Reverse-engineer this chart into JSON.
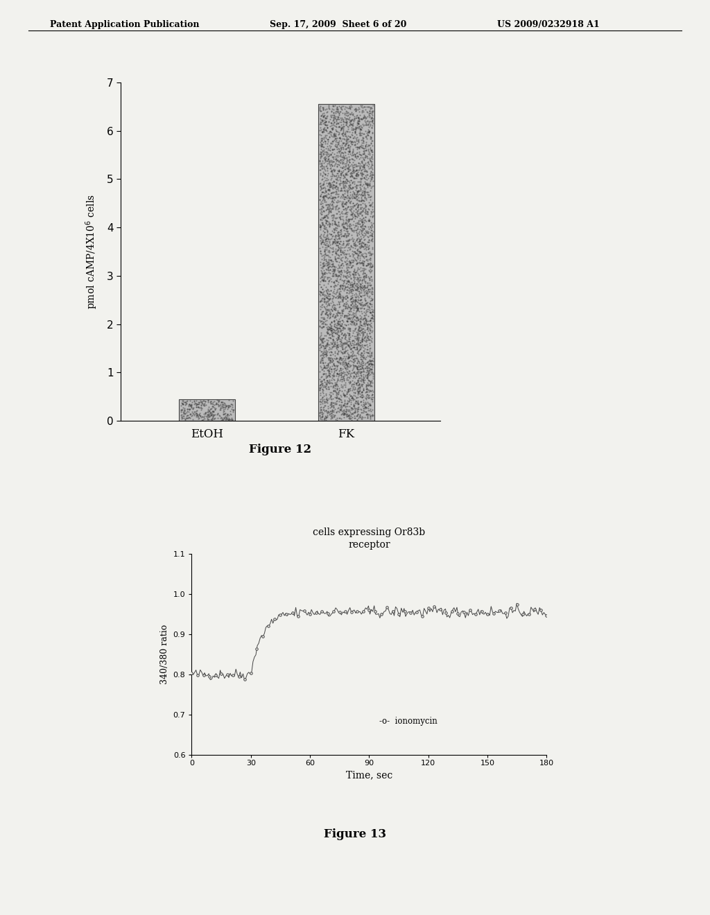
{
  "header_left": "Patent Application Publication",
  "header_mid": "Sep. 17, 2009  Sheet 6 of 20",
  "header_right": "US 2009/0232918 A1",
  "fig12": {
    "title": "Figure 12",
    "categories": [
      "EtOH",
      "FK"
    ],
    "values": [
      0.45,
      6.55
    ],
    "ylabel": "pmol cAMP/4X10$^6$ cells",
    "ylim": [
      0,
      7
    ],
    "yticks": [
      0,
      1,
      2,
      3,
      4,
      5,
      6,
      7
    ],
    "bar_color": "#bbbbbb",
    "bar_edge_color": "#444444",
    "bar_positions": [
      0.28,
      0.65
    ],
    "bar_width": 0.15
  },
  "fig13": {
    "title": "Figure 13",
    "chart_title": "cells expressing Or83b\nreceptor",
    "xlabel": "Time, sec",
    "ylabel": "340/380 ratio",
    "legend_label": "-o-  ionomycin",
    "xlim": [
      0,
      180
    ],
    "ylim": [
      0.6,
      1.1
    ],
    "xticks": [
      0,
      30,
      60,
      90,
      120,
      150,
      180
    ],
    "yticks": [
      0.6,
      0.7,
      0.8,
      0.9,
      1.0,
      1.1
    ],
    "line_color": "#444444"
  },
  "page_bg": "#f2f2ee"
}
